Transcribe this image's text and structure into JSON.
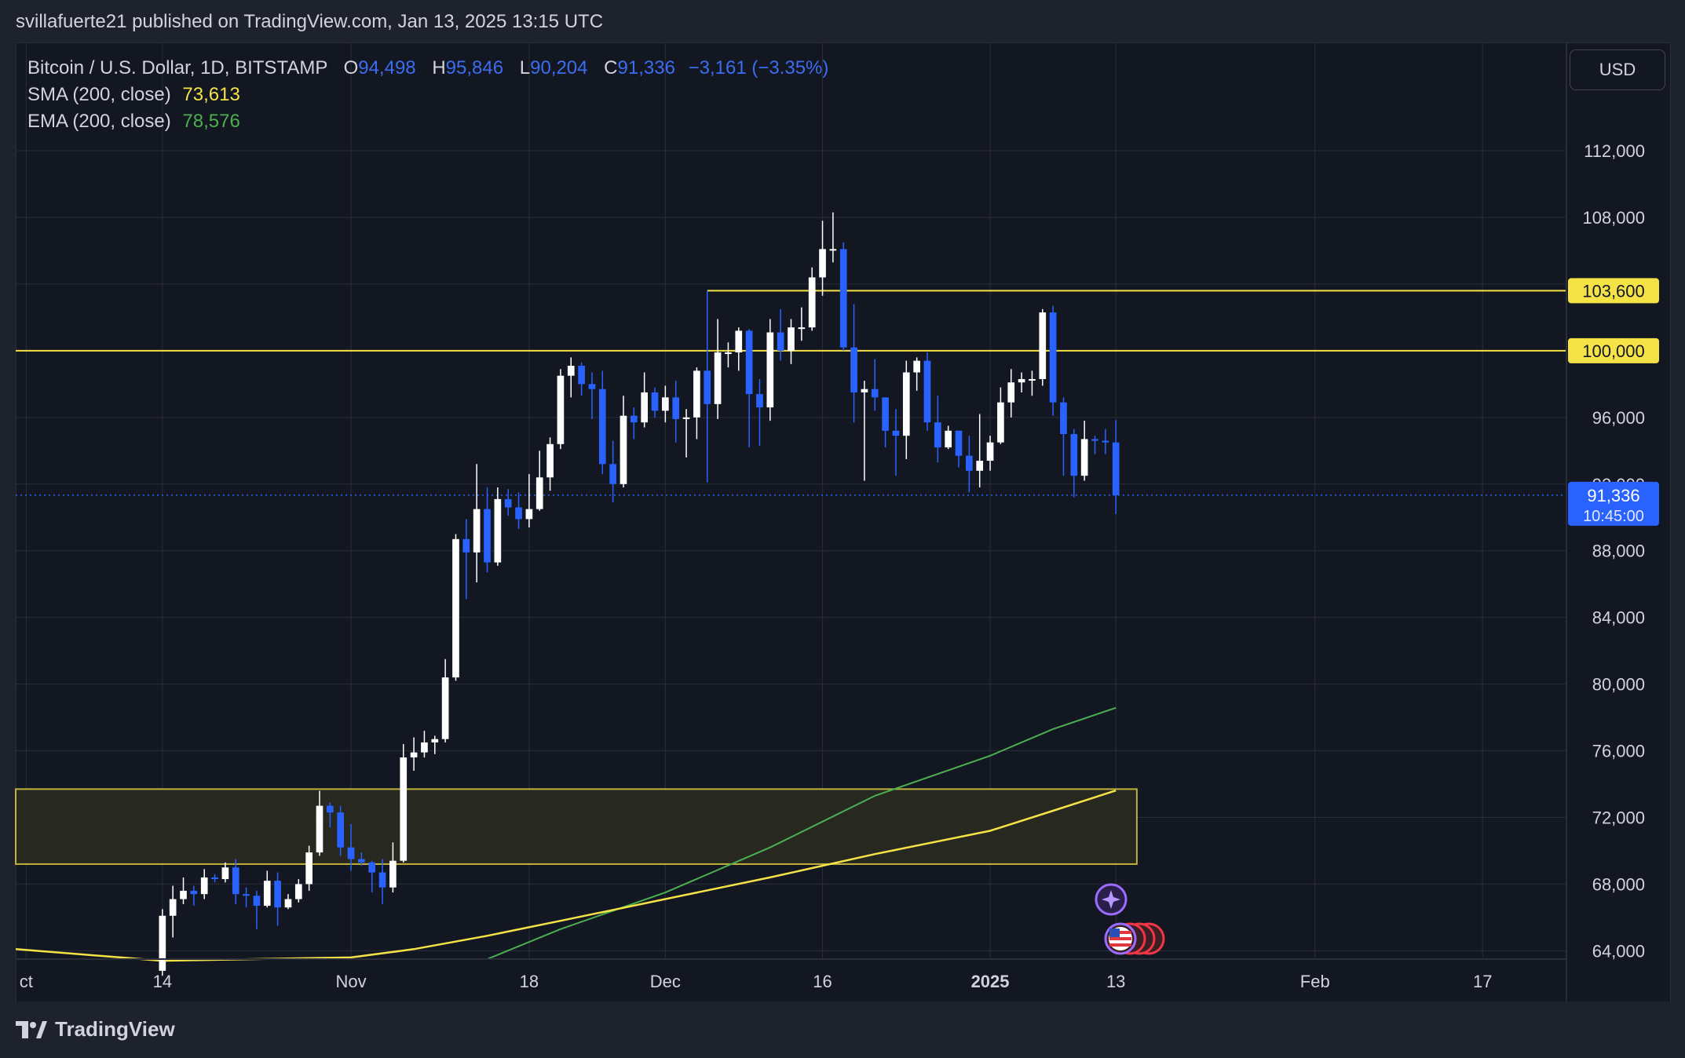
{
  "header": {
    "published_line": "svillafuerte21 published on TradingView.com, Jan 13, 2025 13:15 UTC"
  },
  "legend": {
    "symbol": "Bitcoin / U.S. Dollar, 1D, BITSTAMP",
    "o_label": "O",
    "o_value": "94,498",
    "h_label": "H",
    "h_value": "95,846",
    "l_label": "L",
    "l_value": "90,204",
    "c_label": "C",
    "c_value": "91,336",
    "change": "−3,161 (−3.35%)",
    "sma_label": "SMA (200, close)",
    "sma_value": "73,613",
    "ema_label": "EMA (200, close)",
    "ema_value": "78,576"
  },
  "currency_button": "USD",
  "brand": "TradingView",
  "colors": {
    "up": "#ffffff",
    "down": "#2962ff",
    "sma": "#f5e246",
    "ema": "#4caf50",
    "level": "#f5e246",
    "zone_fill": "#2a2a20",
    "grid": "#2a2e39",
    "background": "#131722"
  },
  "chart_data": {
    "type": "candlestick",
    "symbol": "Bitcoin / U.S. Dollar",
    "interval": "1D",
    "exchange": "BITSTAMP",
    "ylim": [
      63500,
      118500
    ],
    "y_ticks": [
      "112,000",
      "108,000",
      "104,000",
      "100,000",
      "96,000",
      "92,000",
      "88,000",
      "84,000",
      "80,000",
      "76,000",
      "72,000",
      "68,000",
      "64,000"
    ],
    "x_ticks": [
      {
        "label": "ct",
        "date": "2024-10-01"
      },
      {
        "label": "14",
        "date": "2024-10-14"
      },
      {
        "label": "Nov",
        "date": "2024-11-01"
      },
      {
        "label": "18",
        "date": "2024-11-18"
      },
      {
        "label": "Dec",
        "date": "2024-12-01"
      },
      {
        "label": "16",
        "date": "2024-12-16"
      },
      {
        "label": "2025",
        "date": "2025-01-01",
        "bold": true
      },
      {
        "label": "13",
        "date": "2025-01-13"
      },
      {
        "label": "Feb",
        "date": "2025-02-01"
      },
      {
        "label": "17",
        "date": "2025-02-17"
      }
    ],
    "x_range": [
      "2024-09-30",
      "2025-02-25"
    ],
    "horizontal_levels": [
      {
        "price": 103600,
        "label": "103,600",
        "from": "2024-12-05"
      },
      {
        "price": 100000,
        "label": "100,000",
        "from": "2024-09-30"
      }
    ],
    "zone": {
      "price_low": 69200,
      "price_high": 73700,
      "from": "2024-09-30",
      "to": "2025-01-15"
    },
    "last_price": {
      "value": 91336,
      "label": "91,336",
      "countdown": "10:45:00"
    },
    "candles": [
      {
        "date": "2024-10-14",
        "o": 62800,
        "h": 66500,
        "l": 62500,
        "c": 66100
      },
      {
        "date": "2024-10-15",
        "o": 66100,
        "h": 67900,
        "l": 64800,
        "c": 67100
      },
      {
        "date": "2024-10-16",
        "o": 67100,
        "h": 68400,
        "l": 66800,
        "c": 67600
      },
      {
        "date": "2024-10-17",
        "o": 67600,
        "h": 67900,
        "l": 66700,
        "c": 67400
      },
      {
        "date": "2024-10-18",
        "o": 67400,
        "h": 68900,
        "l": 67100,
        "c": 68400
      },
      {
        "date": "2024-10-19",
        "o": 68400,
        "h": 68600,
        "l": 68100,
        "c": 68300
      },
      {
        "date": "2024-10-20",
        "o": 68300,
        "h": 69300,
        "l": 68100,
        "c": 69000
      },
      {
        "date": "2024-10-21",
        "o": 69000,
        "h": 69500,
        "l": 66800,
        "c": 67400
      },
      {
        "date": "2024-10-22",
        "o": 67400,
        "h": 67800,
        "l": 66600,
        "c": 67300
      },
      {
        "date": "2024-10-23",
        "o": 67300,
        "h": 67600,
        "l": 65300,
        "c": 66700
      },
      {
        "date": "2024-10-24",
        "o": 66700,
        "h": 68800,
        "l": 66600,
        "c": 68200
      },
      {
        "date": "2024-10-25",
        "o": 68200,
        "h": 68700,
        "l": 65500,
        "c": 66600
      },
      {
        "date": "2024-10-26",
        "o": 66600,
        "h": 67400,
        "l": 66500,
        "c": 67100
      },
      {
        "date": "2024-10-27",
        "o": 67100,
        "h": 68300,
        "l": 66900,
        "c": 68000
      },
      {
        "date": "2024-10-28",
        "o": 68000,
        "h": 70300,
        "l": 67600,
        "c": 69900
      },
      {
        "date": "2024-10-29",
        "o": 69900,
        "h": 73600,
        "l": 69700,
        "c": 72700
      },
      {
        "date": "2024-10-30",
        "o": 72700,
        "h": 72900,
        "l": 71400,
        "c": 72300
      },
      {
        "date": "2024-10-31",
        "o": 72300,
        "h": 72700,
        "l": 69700,
        "c": 70200
      },
      {
        "date": "2024-11-01",
        "o": 70200,
        "h": 71600,
        "l": 68800,
        "c": 69500
      },
      {
        "date": "2024-11-02",
        "o": 69500,
        "h": 69900,
        "l": 69100,
        "c": 69300
      },
      {
        "date": "2024-11-03",
        "o": 69300,
        "h": 69400,
        "l": 67500,
        "c": 68700
      },
      {
        "date": "2024-11-04",
        "o": 68700,
        "h": 69500,
        "l": 66800,
        "c": 67800
      },
      {
        "date": "2024-11-05",
        "o": 67800,
        "h": 70500,
        "l": 67500,
        "c": 69400
      },
      {
        "date": "2024-11-06",
        "o": 69400,
        "h": 76400,
        "l": 69300,
        "c": 75600
      },
      {
        "date": "2024-11-07",
        "o": 75600,
        "h": 76800,
        "l": 74800,
        "c": 75900
      },
      {
        "date": "2024-11-08",
        "o": 75900,
        "h": 77200,
        "l": 75600,
        "c": 76500
      },
      {
        "date": "2024-11-09",
        "o": 76500,
        "h": 76900,
        "l": 75800,
        "c": 76700
      },
      {
        "date": "2024-11-10",
        "o": 76700,
        "h": 81500,
        "l": 76500,
        "c": 80400
      },
      {
        "date": "2024-11-11",
        "o": 80400,
        "h": 89000,
        "l": 80200,
        "c": 88700
      },
      {
        "date": "2024-11-12",
        "o": 88700,
        "h": 89900,
        "l": 85100,
        "c": 87900
      },
      {
        "date": "2024-11-13",
        "o": 87900,
        "h": 93200,
        "l": 86100,
        "c": 90500
      },
      {
        "date": "2024-11-14",
        "o": 90500,
        "h": 91800,
        "l": 86700,
        "c": 87300
      },
      {
        "date": "2024-11-15",
        "o": 87300,
        "h": 91800,
        "l": 87100,
        "c": 91100
      },
      {
        "date": "2024-11-16",
        "o": 91100,
        "h": 91700,
        "l": 90100,
        "c": 90600
      },
      {
        "date": "2024-11-17",
        "o": 90600,
        "h": 91500,
        "l": 89300,
        "c": 89900
      },
      {
        "date": "2024-11-18",
        "o": 89900,
        "h": 92600,
        "l": 89400,
        "c": 90500
      },
      {
        "date": "2024-11-19",
        "o": 90500,
        "h": 94000,
        "l": 90400,
        "c": 92400
      },
      {
        "date": "2024-11-20",
        "o": 92400,
        "h": 94800,
        "l": 91600,
        "c": 94400
      },
      {
        "date": "2024-11-21",
        "o": 94400,
        "h": 98900,
        "l": 94100,
        "c": 98500
      },
      {
        "date": "2024-11-22",
        "o": 98500,
        "h": 99600,
        "l": 97200,
        "c": 99100
      },
      {
        "date": "2024-11-23",
        "o": 99100,
        "h": 99300,
        "l": 97300,
        "c": 98000
      },
      {
        "date": "2024-11-24",
        "o": 98000,
        "h": 98700,
        "l": 95900,
        "c": 97700
      },
      {
        "date": "2024-11-25",
        "o": 97700,
        "h": 98800,
        "l": 92600,
        "c": 93200
      },
      {
        "date": "2024-11-26",
        "o": 93200,
        "h": 94600,
        "l": 90900,
        "c": 92000
      },
      {
        "date": "2024-11-27",
        "o": 92000,
        "h": 97300,
        "l": 91800,
        "c": 96100
      },
      {
        "date": "2024-11-28",
        "o": 96100,
        "h": 96600,
        "l": 94700,
        "c": 95700
      },
      {
        "date": "2024-11-29",
        "o": 95700,
        "h": 98700,
        "l": 95400,
        "c": 97500
      },
      {
        "date": "2024-11-30",
        "o": 97500,
        "h": 97800,
        "l": 96000,
        "c": 96400
      },
      {
        "date": "2024-12-01",
        "o": 96400,
        "h": 97900,
        "l": 95700,
        "c": 97200
      },
      {
        "date": "2024-12-02",
        "o": 97200,
        "h": 98200,
        "l": 94500,
        "c": 95900
      },
      {
        "date": "2024-12-03",
        "o": 95900,
        "h": 96500,
        "l": 93600,
        "c": 96000
      },
      {
        "date": "2024-12-04",
        "o": 96000,
        "h": 99000,
        "l": 94700,
        "c": 98800
      },
      {
        "date": "2024-12-05",
        "o": 98800,
        "h": 103600,
        "l": 92100,
        "c": 96800
      },
      {
        "date": "2024-12-06",
        "o": 96800,
        "h": 101900,
        "l": 95900,
        "c": 99900
      },
      {
        "date": "2024-12-07",
        "o": 99900,
        "h": 100500,
        "l": 99000,
        "c": 99900
      },
      {
        "date": "2024-12-08",
        "o": 99900,
        "h": 101400,
        "l": 98800,
        "c": 101200
      },
      {
        "date": "2024-12-09",
        "o": 101200,
        "h": 101300,
        "l": 94200,
        "c": 97400
      },
      {
        "date": "2024-12-10",
        "o": 97400,
        "h": 98300,
        "l": 94300,
        "c": 96600
      },
      {
        "date": "2024-12-11",
        "o": 96600,
        "h": 101900,
        "l": 95800,
        "c": 101100
      },
      {
        "date": "2024-12-12",
        "o": 101100,
        "h": 102500,
        "l": 99400,
        "c": 100000
      },
      {
        "date": "2024-12-13",
        "o": 100000,
        "h": 101900,
        "l": 99200,
        "c": 101400
      },
      {
        "date": "2024-12-14",
        "o": 101400,
        "h": 102600,
        "l": 100600,
        "c": 101400
      },
      {
        "date": "2024-12-15",
        "o": 101400,
        "h": 105000,
        "l": 101200,
        "c": 104400
      },
      {
        "date": "2024-12-16",
        "o": 104400,
        "h": 107800,
        "l": 103300,
        "c": 106100
      },
      {
        "date": "2024-12-17",
        "o": 106100,
        "h": 108300,
        "l": 105300,
        "c": 106100
      },
      {
        "date": "2024-12-18",
        "o": 106100,
        "h": 106500,
        "l": 100000,
        "c": 100200
      },
      {
        "date": "2024-12-19",
        "o": 100200,
        "h": 102800,
        "l": 95700,
        "c": 97500
      },
      {
        "date": "2024-12-20",
        "o": 97500,
        "h": 98200,
        "l": 92200,
        "c": 97700
      },
      {
        "date": "2024-12-21",
        "o": 97700,
        "h": 99500,
        "l": 96400,
        "c": 97200
      },
      {
        "date": "2024-12-22",
        "o": 97200,
        "h": 97200,
        "l": 94200,
        "c": 95200
      },
      {
        "date": "2024-12-23",
        "o": 95200,
        "h": 96500,
        "l": 92500,
        "c": 94900
      },
      {
        "date": "2024-12-24",
        "o": 94900,
        "h": 99400,
        "l": 93500,
        "c": 98700
      },
      {
        "date": "2024-12-25",
        "o": 98700,
        "h": 99600,
        "l": 97600,
        "c": 99400
      },
      {
        "date": "2024-12-26",
        "o": 99400,
        "h": 99900,
        "l": 95200,
        "c": 95700
      },
      {
        "date": "2024-12-27",
        "o": 95700,
        "h": 97300,
        "l": 93300,
        "c": 94200
      },
      {
        "date": "2024-12-28",
        "o": 94200,
        "h": 95500,
        "l": 94100,
        "c": 95200
      },
      {
        "date": "2024-12-29",
        "o": 95200,
        "h": 95200,
        "l": 93000,
        "c": 93700
      },
      {
        "date": "2024-12-30",
        "o": 93700,
        "h": 94900,
        "l": 91500,
        "c": 92800
      },
      {
        "date": "2024-12-31",
        "o": 92800,
        "h": 96200,
        "l": 91800,
        "c": 93400
      },
      {
        "date": "2025-01-01",
        "o": 93400,
        "h": 94900,
        "l": 92800,
        "c": 94500
      },
      {
        "date": "2025-01-02",
        "o": 94500,
        "h": 97800,
        "l": 94400,
        "c": 96900
      },
      {
        "date": "2025-01-03",
        "o": 96900,
        "h": 98900,
        "l": 96000,
        "c": 98100
      },
      {
        "date": "2025-01-04",
        "o": 98100,
        "h": 98700,
        "l": 97500,
        "c": 98300
      },
      {
        "date": "2025-01-05",
        "o": 98300,
        "h": 98800,
        "l": 97300,
        "c": 98300
      },
      {
        "date": "2025-01-06",
        "o": 98300,
        "h": 102500,
        "l": 97900,
        "c": 102300
      },
      {
        "date": "2025-01-07",
        "o": 102300,
        "h": 102700,
        "l": 96100,
        "c": 96900
      },
      {
        "date": "2025-01-08",
        "o": 96900,
        "h": 97200,
        "l": 92500,
        "c": 95000
      },
      {
        "date": "2025-01-09",
        "o": 95000,
        "h": 95300,
        "l": 91200,
        "c": 92500
      },
      {
        "date": "2025-01-10",
        "o": 92500,
        "h": 95800,
        "l": 92200,
        "c": 94700
      },
      {
        "date": "2025-01-11",
        "o": 94700,
        "h": 94900,
        "l": 93800,
        "c": 94600
      },
      {
        "date": "2025-01-12",
        "o": 94600,
        "h": 95300,
        "l": 93800,
        "c": 94500
      },
      {
        "date": "2025-01-13",
        "o": 94498,
        "h": 95846,
        "l": 90204,
        "c": 91336
      }
    ],
    "sma_200": [
      {
        "date": "2024-09-30",
        "v": 64100
      },
      {
        "date": "2024-10-14",
        "v": 63400
      },
      {
        "date": "2024-11-01",
        "v": 63600
      },
      {
        "date": "2024-11-07",
        "v": 64100
      },
      {
        "date": "2024-11-14",
        "v": 64900
      },
      {
        "date": "2024-11-21",
        "v": 65800
      },
      {
        "date": "2024-12-01",
        "v": 67100
      },
      {
        "date": "2024-12-11",
        "v": 68400
      },
      {
        "date": "2024-12-21",
        "v": 69800
      },
      {
        "date": "2025-01-01",
        "v": 71200
      },
      {
        "date": "2025-01-07",
        "v": 72400
      },
      {
        "date": "2025-01-13",
        "v": 73613
      }
    ],
    "ema_200": [
      {
        "date": "2024-11-14",
        "v": 63500
      },
      {
        "date": "2024-11-21",
        "v": 65300
      },
      {
        "date": "2024-12-01",
        "v": 67500
      },
      {
        "date": "2024-12-11",
        "v": 70200
      },
      {
        "date": "2024-12-21",
        "v": 73300
      },
      {
        "date": "2025-01-01",
        "v": 75700
      },
      {
        "date": "2025-01-07",
        "v": 77300
      },
      {
        "date": "2025-01-13",
        "v": 78576
      }
    ]
  }
}
